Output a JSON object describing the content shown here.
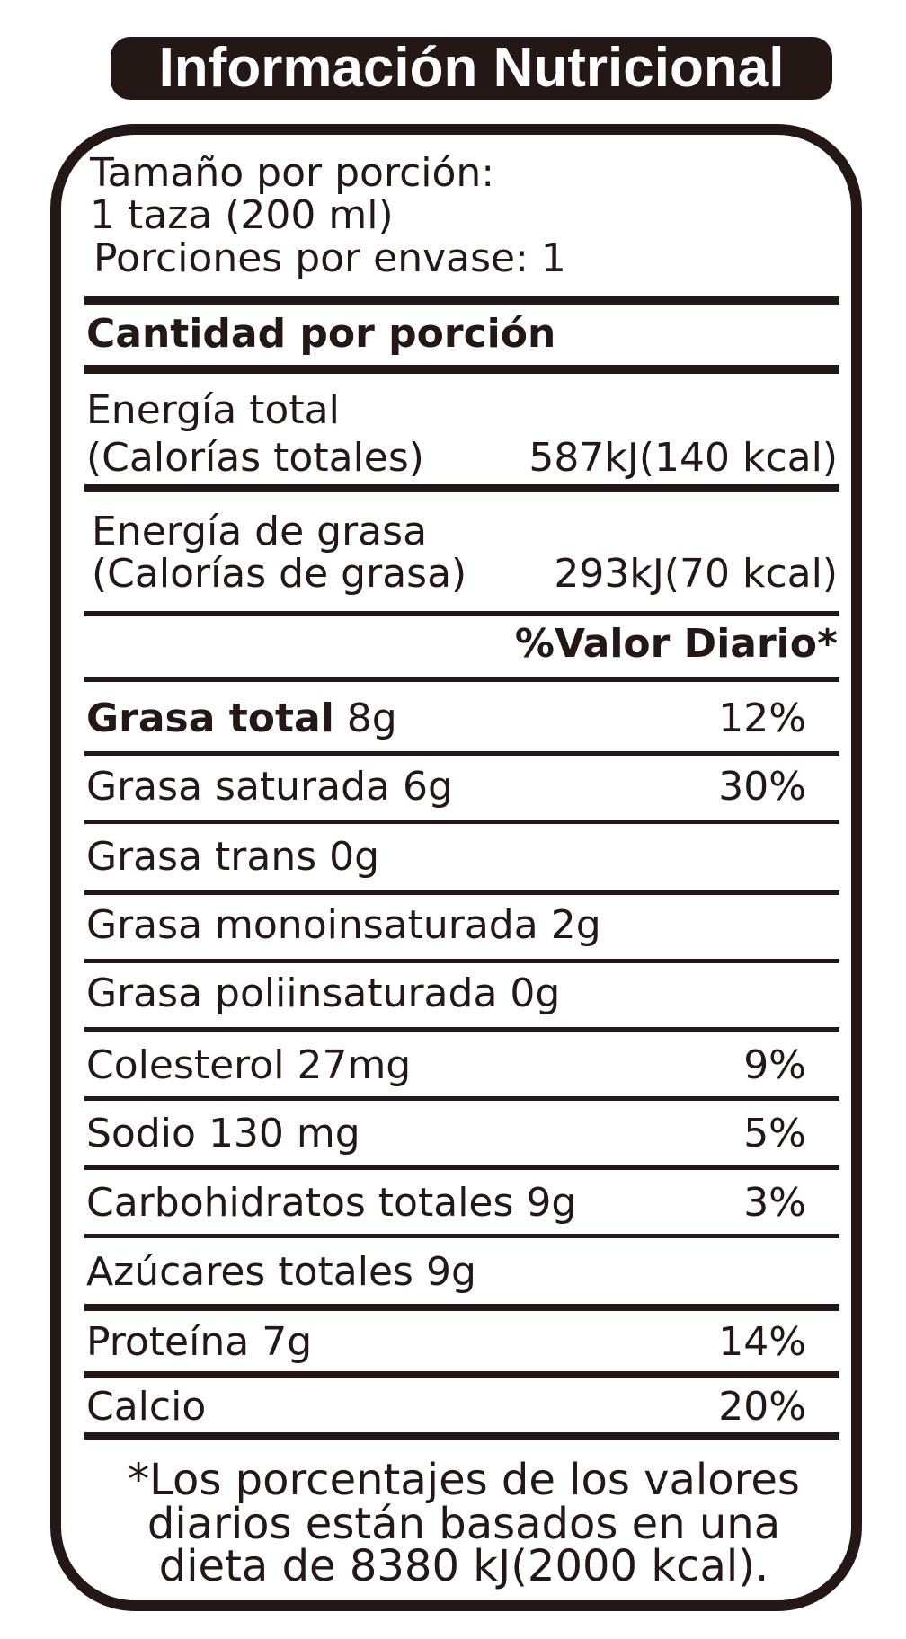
{
  "header": {
    "title": "Información Nutricional"
  },
  "serving": {
    "size_label": "Tamaño por porción:",
    "size": "1 taza (200 ml)",
    "servings": "Porciones por envase: 1"
  },
  "amount_heading": "Cantidad por porción",
  "energy": [
    {
      "line1": "Energía total",
      "line2": "(Calorías totales)",
      "value": "587kJ(140 kcal)"
    },
    {
      "line1": "Energía de grasa",
      "line2": "(Calorías de grasa)",
      "value": "293kJ(70 kcal)"
    }
  ],
  "dv_heading": "%Valor Diario*",
  "rows": [
    {
      "name": "Grasa total",
      "amount": "8g",
      "dv": "12%",
      "bold": true
    },
    {
      "name": "Grasa saturada",
      "amount": "6g",
      "dv": "30%"
    },
    {
      "name": "Grasa trans",
      "amount": "0g"
    },
    {
      "name": "Grasa monoinsaturada",
      "amount": "2g"
    },
    {
      "name": "Grasa poliinsaturada",
      "amount": "0g"
    },
    {
      "name": "Colesterol",
      "amount": "27mg",
      "dv": "9%"
    },
    {
      "name": "Sodio",
      "amount": "130 mg",
      "dv": "5%"
    },
    {
      "name": "Carbohidratos totales",
      "amount": "9g",
      "dv": "3%"
    },
    {
      "name": "Azúcares totales",
      "amount": "9g"
    },
    {
      "name": "Proteína",
      "amount": "7g",
      "dv": "14%"
    },
    {
      "name": "Calcio",
      "dv": "20%"
    }
  ],
  "footnote": [
    "*Los porcentajes de los valores",
    "diarios están basados en una",
    "dieta de 8380 kJ(2000 kcal)."
  ]
}
